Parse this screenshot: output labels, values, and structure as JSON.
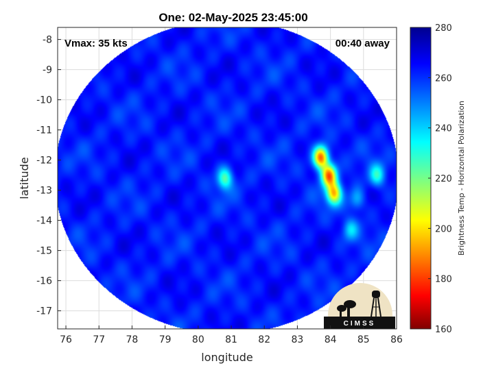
{
  "chart_data": {
    "type": "heatmap",
    "title": "One: 02-May-2025 23:45:00",
    "xlabel": "longitude",
    "ylabel": "latitude",
    "xlim": [
      75.75,
      86
    ],
    "ylim": [
      -17.6,
      -7.6
    ],
    "xticks": [
      76,
      77,
      78,
      79,
      80,
      81,
      82,
      83,
      84,
      85,
      86
    ],
    "yticks": [
      -8,
      -9,
      -10,
      -11,
      -12,
      -13,
      -14,
      -15,
      -16,
      -17
    ],
    "grid": true,
    "annotations": {
      "left": "Vmax: 35 kts",
      "right": "00:40 away"
    },
    "colorbar": {
      "label": "Brightness Temp - Horizontal Polarization",
      "range": [
        160,
        280
      ],
      "ticks": [
        160,
        180,
        200,
        220,
        240,
        260,
        280
      ],
      "colormap": "jet"
    },
    "swath": {
      "center_lon": 80.85,
      "center_lat": -12.55,
      "radius_deg": 5.2
    },
    "background_temp": 262,
    "features": [
      {
        "lon": 83.7,
        "lat": -11.9,
        "min_temp": 185
      },
      {
        "lon": 83.95,
        "lat": -12.5,
        "min_temp": 190
      },
      {
        "lon": 84.1,
        "lat": -13.1,
        "min_temp": 200
      },
      {
        "lon": 80.8,
        "lat": -12.6,
        "min_temp": 225
      },
      {
        "lon": 85.4,
        "lat": -12.5,
        "min_temp": 232
      },
      {
        "lon": 84.6,
        "lat": -14.3,
        "min_temp": 240
      },
      {
        "lon": 84.8,
        "lat": -13.3,
        "min_temp": 242
      }
    ]
  },
  "logo": {
    "text": "CIMSS"
  },
  "colors": {
    "background": "#ffffff",
    "grid": "#dcdcdc",
    "logo_bg": "#efe3c4"
  }
}
